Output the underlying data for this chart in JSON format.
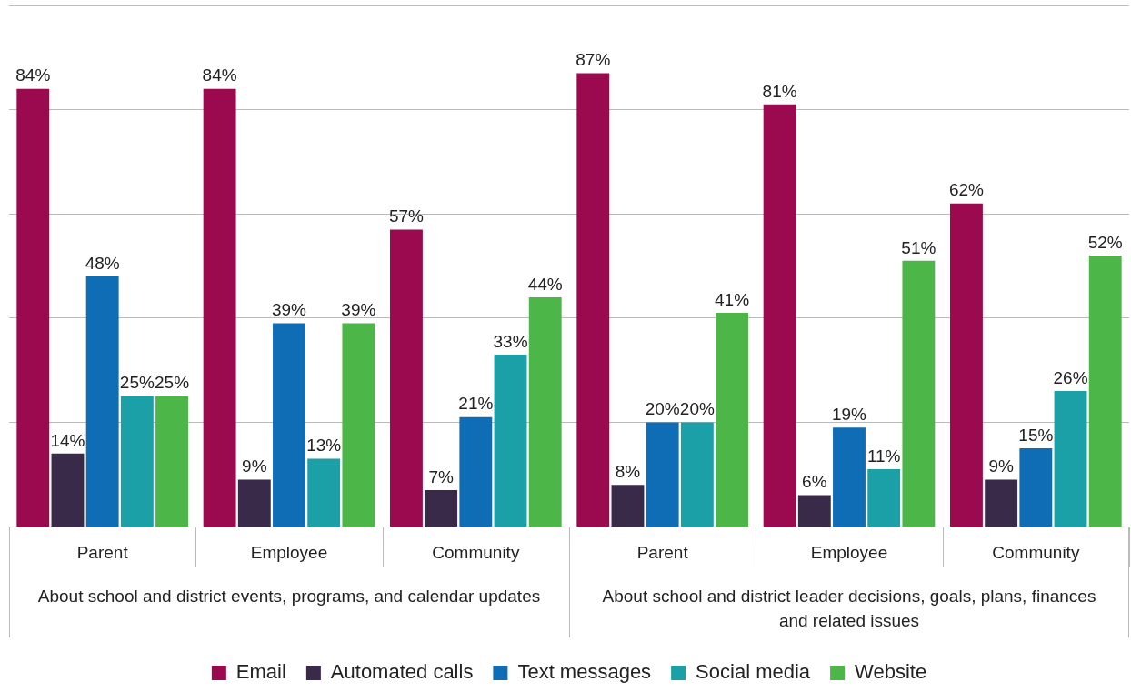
{
  "chart_data": {
    "type": "bar",
    "categories": [
      "Parent",
      "Employee",
      "Community",
      "Parent",
      "Employee",
      "Community"
    ],
    "series": [
      {
        "name": "Email",
        "color": "#9b0a4f",
        "values": [
          84,
          84,
          57,
          87,
          81,
          62
        ],
        "value_labels": [
          "84%",
          "84%",
          "57%",
          "87%",
          "81%",
          "62%"
        ]
      },
      {
        "name": "Automated calls",
        "color": "#3a2a4a",
        "values": [
          14,
          9,
          7,
          8,
          6,
          9
        ],
        "value_labels": [
          "14%",
          "9%",
          "7%",
          "8%",
          "6%",
          "9%"
        ]
      },
      {
        "name": "Text messages",
        "color": "#0f6db5",
        "values": [
          48,
          39,
          21,
          20,
          19,
          15
        ],
        "value_labels": [
          "48%",
          "39%",
          "21%",
          "20%",
          "19%",
          "15%"
        ]
      },
      {
        "name": "Social media",
        "color": "#1aa0a6",
        "values": [
          25,
          13,
          33,
          20,
          11,
          26
        ],
        "value_labels": [
          "25%",
          "13%",
          "33%",
          "20%",
          "11%",
          "26%"
        ]
      },
      {
        "name": "Website",
        "color": "#4cb748",
        "values": [
          25,
          39,
          44,
          41,
          51,
          52
        ],
        "value_labels": [
          "25%",
          "39%",
          "44%",
          "41%",
          "51%",
          "52%"
        ]
      }
    ],
    "ylim": [
      0,
      100
    ],
    "yticks": [
      {
        "value": 20,
        "label": null
      },
      {
        "value": 40,
        "label": null
      },
      {
        "value": 60,
        "label": null
      },
      {
        "value": 80,
        "label": null
      },
      {
        "value": 100,
        "label": null
      }
    ],
    "tick_labels": "x",
    "grid": "y",
    "legend": "bottom",
    "annotations": [
      "About school and district events, programs, and calendar updates",
      "About school and district leader decisions, goals, plans, finances and related issues"
    ]
  }
}
